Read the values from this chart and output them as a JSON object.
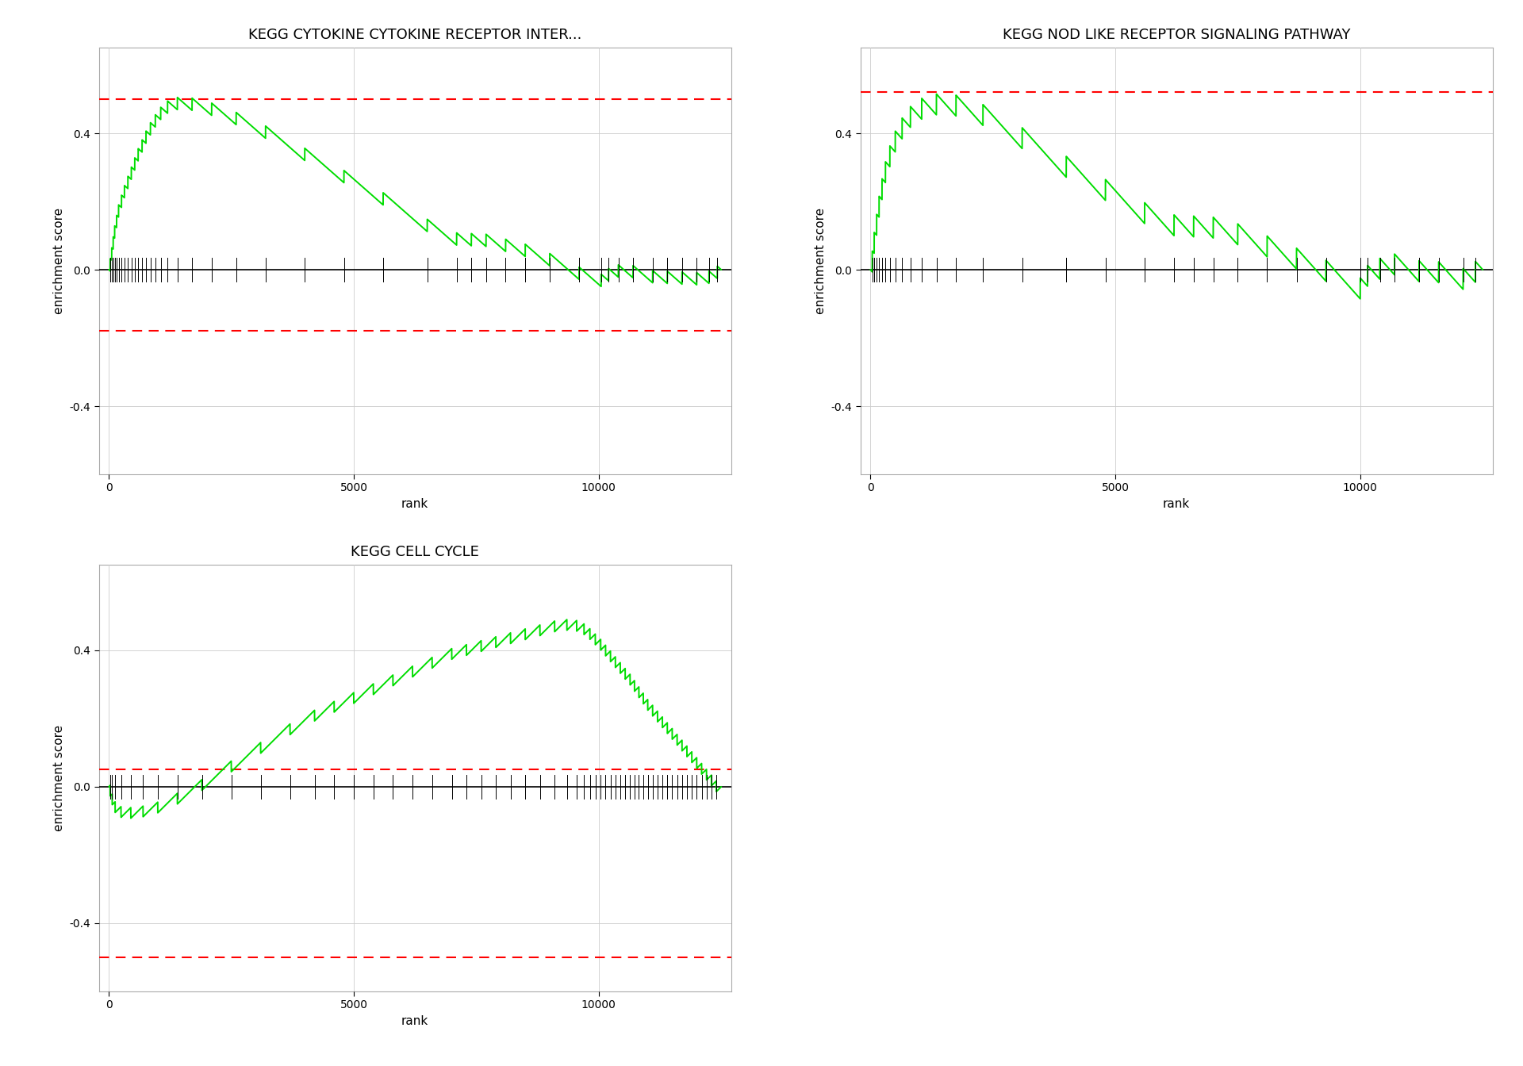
{
  "plots": [
    {
      "title": "KEGG CYTOKINE CYTOKINE RECEPTOR INTER...",
      "max_rank": 12500,
      "xlim": [
        -200,
        12700
      ],
      "ylim": [
        -0.6,
        0.65
      ],
      "yticks": [
        -0.4,
        0.0,
        0.4
      ],
      "dashed_lines": [
        0.5,
        -0.18
      ],
      "curve_type": "cytokine",
      "tick_positions": [
        30,
        60,
        90,
        120,
        160,
        200,
        260,
        320,
        390,
        460,
        530,
        600,
        680,
        760,
        850,
        950,
        1060,
        1200,
        1400,
        1700,
        2100,
        2600,
        3200,
        4000,
        4800,
        5600,
        6500,
        7100,
        7400,
        7700,
        8100,
        8500,
        9000,
        9600,
        10050,
        10200,
        10400,
        10700,
        11100,
        11400,
        11700,
        12000,
        12250,
        12420
      ],
      "xticks": [
        0,
        5000,
        10000
      ],
      "xlabel": "rank",
      "ylabel": "enrichment score"
    },
    {
      "title": "KEGG NOD LIKE RECEPTOR SIGNALING PATHWAY",
      "max_rank": 12500,
      "xlim": [
        -200,
        12700
      ],
      "ylim": [
        -0.6,
        0.65
      ],
      "yticks": [
        -0.4,
        0.0,
        0.4
      ],
      "dashed_lines": [
        0.52,
        null
      ],
      "curve_type": "nod",
      "tick_positions": [
        40,
        80,
        130,
        180,
        240,
        310,
        400,
        510,
        650,
        820,
        1050,
        1350,
        1750,
        2300,
        3100,
        4000,
        4800,
        5600,
        6200,
        6600,
        7000,
        7500,
        8100,
        8700,
        9300,
        10000,
        10150,
        10400,
        10700,
        11200,
        11600,
        12100,
        12350
      ],
      "xticks": [
        0,
        5000,
        10000
      ],
      "xlabel": "rank",
      "ylabel": "enrichment score"
    },
    {
      "title": "KEGG CELL CYCLE",
      "max_rank": 12500,
      "xlim": [
        -200,
        12700
      ],
      "ylim": [
        -0.6,
        0.65
      ],
      "yticks": [
        -0.4,
        0.0,
        0.4
      ],
      "dashed_lines": [
        0.05,
        -0.5
      ],
      "curve_type": "cellcycle",
      "tick_positions": [
        30,
        70,
        130,
        250,
        450,
        700,
        1000,
        1400,
        1900,
        2500,
        3100,
        3700,
        4200,
        4600,
        5000,
        5400,
        5800,
        6200,
        6600,
        7000,
        7300,
        7600,
        7900,
        8200,
        8500,
        8800,
        9100,
        9350,
        9550,
        9700,
        9820,
        9930,
        10040,
        10140,
        10240,
        10340,
        10440,
        10540,
        10640,
        10730,
        10820,
        10910,
        11000,
        11100,
        11200,
        11300,
        11400,
        11500,
        11600,
        11700,
        11800,
        11900,
        12000,
        12100,
        12200,
        12300,
        12400
      ],
      "xticks": [
        0,
        5000,
        10000
      ],
      "xlabel": "rank",
      "ylabel": "enrichment score"
    }
  ],
  "bg_color": "#ffffff",
  "grid_color": "#cccccc",
  "line_color": "#00dd00",
  "dashed_color": "#ff0000",
  "tick_color": "#000000",
  "text_color": "#000000",
  "title_fontsize": 13,
  "label_fontsize": 11,
  "tick_fontsize": 10
}
